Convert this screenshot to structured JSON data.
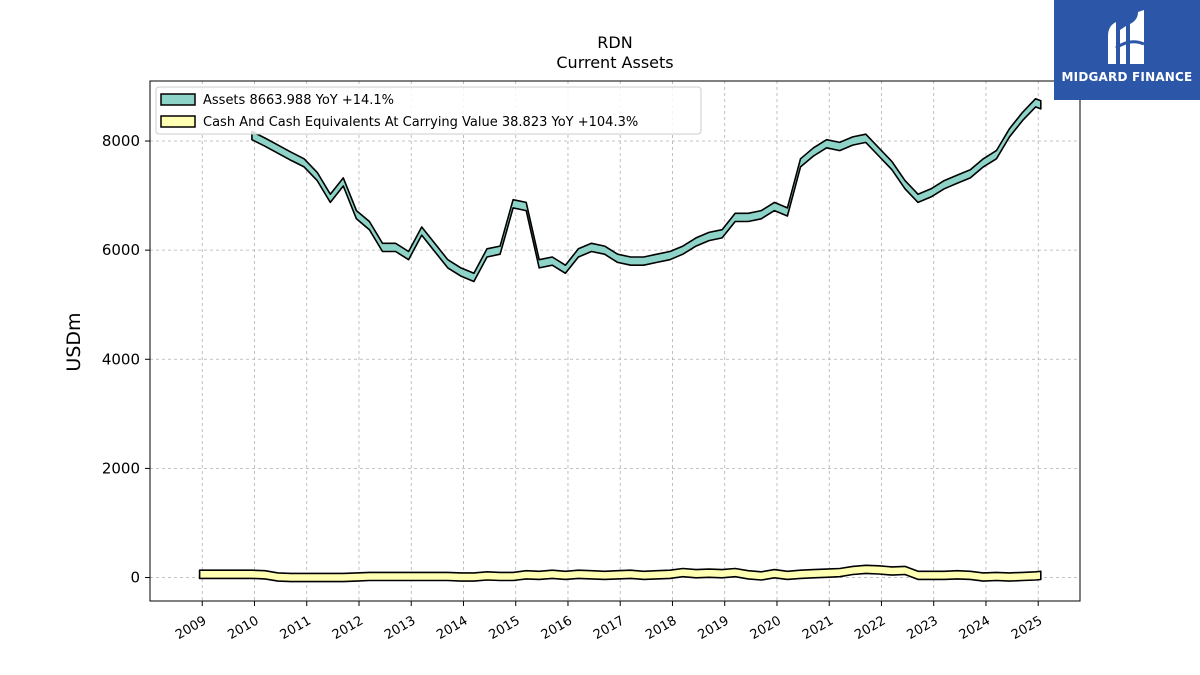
{
  "brand": {
    "name": "MIDGARD FINANCE",
    "logo_icon": "midgard-logo-icon",
    "color": "#2c57a8"
  },
  "chart_data": {
    "type": "area",
    "title": "RDN",
    "subtitle": "Current  Assets",
    "ylabel": "USDm",
    "xlabel": "",
    "ylim": [
      -430,
      9100
    ],
    "xlim": [
      2008.0,
      2025.8
    ],
    "yticks": [
      "0",
      "2000",
      "4000",
      "6000",
      "8000"
    ],
    "xticks": [
      "2009",
      "2010",
      "2011",
      "2012",
      "2013",
      "2014",
      "2015",
      "2016",
      "2017",
      "2018",
      "2019",
      "2020",
      "2021",
      "2022",
      "2023",
      "2024",
      "2025"
    ],
    "grid": true,
    "legend_position": "top-left",
    "series": [
      {
        "name": "Assets",
        "legend_label": "Assets  8663.988 YoY +14.1%",
        "fill": "#8dd3c7",
        "band": 150,
        "x": [
          2009.95,
          2010.2,
          2010.45,
          2010.7,
          2010.95,
          2011.2,
          2011.45,
          2011.7,
          2011.95,
          2012.2,
          2012.45,
          2012.7,
          2012.95,
          2013.2,
          2013.45,
          2013.7,
          2013.95,
          2014.2,
          2014.45,
          2014.7,
          2014.95,
          2015.2,
          2015.45,
          2015.7,
          2015.95,
          2016.2,
          2016.45,
          2016.7,
          2016.95,
          2017.2,
          2017.45,
          2017.7,
          2017.95,
          2018.2,
          2018.45,
          2018.7,
          2018.95,
          2019.2,
          2019.45,
          2019.7,
          2019.95,
          2020.2,
          2020.45,
          2020.7,
          2020.95,
          2021.2,
          2021.45,
          2021.7,
          2021.95,
          2022.2,
          2022.45,
          2022.7,
          2022.95,
          2023.2,
          2023.45,
          2023.7,
          2023.95,
          2024.2,
          2024.45,
          2024.7,
          2024.95,
          2025.05
        ],
        "values": [
          8100,
          7980,
          7850,
          7720,
          7600,
          7350,
          6950,
          7250,
          6650,
          6450,
          6050,
          6050,
          5900,
          6350,
          6050,
          5750,
          5600,
          5500,
          5950,
          6000,
          6850,
          6800,
          5750,
          5800,
          5650,
          5950,
          6050,
          6000,
          5850,
          5800,
          5800,
          5850,
          5900,
          6000,
          6150,
          6250,
          6300,
          6600,
          6600,
          6650,
          6800,
          6700,
          7600,
          7800,
          7950,
          7900,
          8000,
          8050,
          7800,
          7550,
          7200,
          6950,
          7050,
          7200,
          7300,
          7400,
          7600,
          7750,
          8150,
          8450,
          8700,
          8664
        ]
      },
      {
        "name": "Cash And Cash Equivalents At Carrying Value",
        "legend_label": "Cash And Cash Equivalents At Carrying Value  38.823 YoY +104.3%",
        "fill": "#ffffb3",
        "band": 150,
        "x": [
          2008.95,
          2009.2,
          2009.45,
          2009.7,
          2009.95,
          2010.2,
          2010.45,
          2010.7,
          2010.95,
          2011.2,
          2011.45,
          2011.7,
          2011.95,
          2012.2,
          2012.45,
          2012.7,
          2012.95,
          2013.2,
          2013.45,
          2013.7,
          2013.95,
          2014.2,
          2014.45,
          2014.7,
          2014.95,
          2015.2,
          2015.45,
          2015.7,
          2015.95,
          2016.2,
          2016.45,
          2016.7,
          2016.95,
          2017.2,
          2017.45,
          2017.7,
          2017.95,
          2018.2,
          2018.45,
          2018.7,
          2018.95,
          2019.2,
          2019.45,
          2019.7,
          2019.95,
          2020.2,
          2020.45,
          2020.7,
          2020.95,
          2021.2,
          2021.45,
          2021.7,
          2021.95,
          2022.2,
          2022.45,
          2022.7,
          2022.95,
          2023.2,
          2023.45,
          2023.7,
          2023.95,
          2024.2,
          2024.45,
          2024.7,
          2024.95,
          2025.05
        ],
        "values": [
          60,
          60,
          60,
          60,
          60,
          50,
          10,
          0,
          0,
          0,
          0,
          0,
          10,
          20,
          20,
          20,
          20,
          20,
          20,
          20,
          10,
          10,
          30,
          20,
          20,
          50,
          40,
          60,
          40,
          60,
          50,
          40,
          50,
          60,
          40,
          50,
          60,
          90,
          70,
          80,
          70,
          90,
          50,
          30,
          70,
          40,
          60,
          70,
          80,
          90,
          130,
          150,
          140,
          120,
          130,
          40,
          40,
          40,
          50,
          40,
          10,
          20,
          10,
          20,
          30,
          39
        ]
      }
    ]
  }
}
